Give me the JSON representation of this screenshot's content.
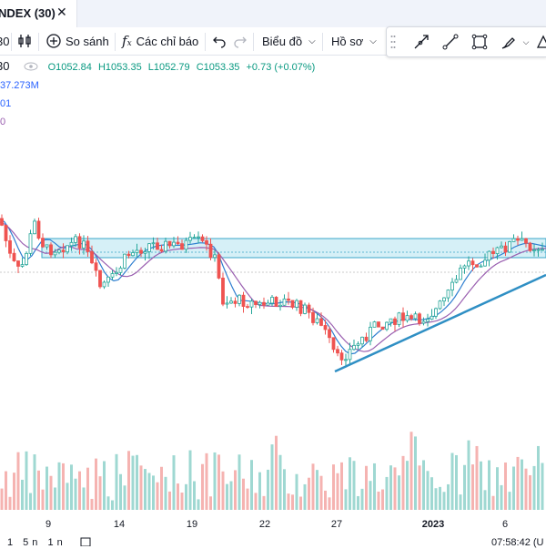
{
  "tab": {
    "title": "NDEX (30)",
    "close_icon": "close-icon"
  },
  "toolbar": {
    "interval": "30",
    "compare_label": "So sánh",
    "indicators_label": "Các chỉ báo",
    "chart_type_label": "Biểu đồ",
    "profile_label": "Hồ sơ"
  },
  "legend": {
    "interval": "30",
    "ohlc": {
      "open": "O1052.84",
      "high": "H1053.35",
      "low": "L1052.79",
      "close": "C1053.35",
      "change": "+0.73 (+0.07%)"
    },
    "line2": "37.273M",
    "line3": "01",
    "line4": "0"
  },
  "colors": {
    "up": "#26a69a",
    "down": "#ef5350",
    "vol_up": "#9fd8d2",
    "vol_down": "#f5b3b1",
    "trendline": "#2f8fc4",
    "zone_fill": "#d6f0f7",
    "zone_border": "#3aa6c8",
    "ma_fast": "#2f7fd0",
    "ma_slow": "#9a5fb0"
  },
  "xaxis": {
    "labels": [
      "9",
      "14",
      "19",
      "22",
      "27",
      "2023",
      "6"
    ]
  },
  "bottom": {
    "left_text": "1 5n 1n",
    "right_text": "07:58:42 (U"
  }
}
